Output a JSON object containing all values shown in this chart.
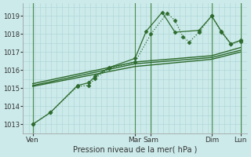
{
  "background_color": "#cceaea",
  "grid_color": "#aad4d4",
  "line_color": "#2d6b2d",
  "marker_color": "#2d6b2d",
  "xlabel": "Pression niveau de la mer( hPa )",
  "xlim": [
    0,
    7.0
  ],
  "ylim": [
    1012.5,
    1019.7
  ],
  "yticks": [
    1013,
    1014,
    1015,
    1016,
    1017,
    1018,
    1019
  ],
  "xtick_positions": [
    0.3,
    3.5,
    4.0,
    5.9,
    6.8
  ],
  "xtick_labels": [
    "Ven",
    "Mar",
    "Sam",
    "Dim",
    "Lun"
  ],
  "vline_positions": [
    0.3,
    3.5,
    4.0,
    5.9,
    6.8
  ],
  "series": [
    {
      "x": [
        0.3,
        0.85,
        1.7,
        2.05,
        2.25,
        2.7,
        3.5,
        4.0,
        4.5,
        4.75,
        5.0,
        5.2,
        5.5,
        5.9,
        6.2,
        6.5,
        6.8
      ],
      "y": [
        1013.0,
        1013.65,
        1015.1,
        1015.15,
        1015.55,
        1016.1,
        1016.45,
        1018.0,
        1019.15,
        1018.75,
        1017.85,
        1017.55,
        1018.1,
        1019.0,
        1018.1,
        1017.45,
        1017.6
      ],
      "dotted": true,
      "marker": "D",
      "markersize": 2.5,
      "linewidth": 0.9
    },
    {
      "x": [
        0.3,
        0.85,
        1.7,
        2.05,
        2.25,
        2.7,
        3.5,
        3.85,
        4.35,
        4.75,
        5.5,
        5.9,
        6.2,
        6.5,
        6.8
      ],
      "y": [
        1013.0,
        1013.65,
        1015.15,
        1015.3,
        1015.65,
        1016.15,
        1016.65,
        1018.15,
        1019.2,
        1018.1,
        1018.2,
        1019.0,
        1018.15,
        1017.45,
        1017.65
      ],
      "dotted": false,
      "marker": "D",
      "markersize": 2.5,
      "linewidth": 0.9
    },
    {
      "x": [
        0.3,
        3.5,
        5.9,
        6.8
      ],
      "y": [
        1015.15,
        1016.35,
        1016.7,
        1017.1
      ],
      "dotted": false,
      "marker": null,
      "markersize": 0,
      "linewidth": 1.0
    },
    {
      "x": [
        0.3,
        3.5,
        5.9,
        6.8
      ],
      "y": [
        1015.25,
        1016.45,
        1016.8,
        1017.25
      ],
      "dotted": false,
      "marker": null,
      "markersize": 0,
      "linewidth": 1.0
    },
    {
      "x": [
        0.3,
        3.5,
        5.9,
        6.8
      ],
      "y": [
        1015.1,
        1016.2,
        1016.6,
        1017.0
      ],
      "dotted": false,
      "marker": null,
      "markersize": 0,
      "linewidth": 1.0
    }
  ]
}
